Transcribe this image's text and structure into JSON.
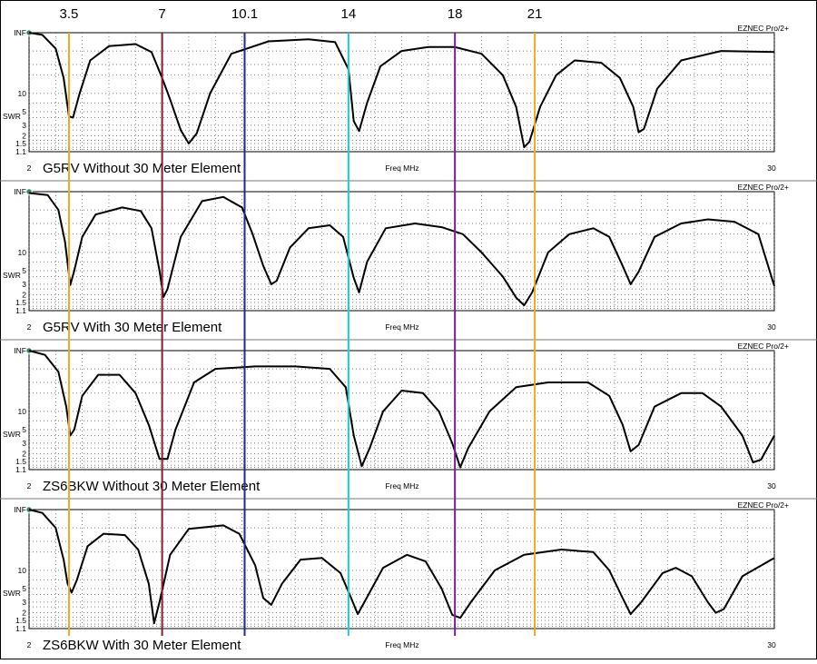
{
  "band_markers": [
    {
      "label": "3.5",
      "freq": 3.5,
      "color": "#f5a623"
    },
    {
      "label": "7",
      "freq": 7,
      "color": "#8b1a2e"
    },
    {
      "label": "10.1",
      "freq": 10.1,
      "color": "#1f2a8c"
    },
    {
      "label": "14",
      "freq": 14,
      "color": "#1ec8e6"
    },
    {
      "label": "18",
      "freq": 18,
      "color": "#7a1f9a"
    },
    {
      "label": "21",
      "freq": 21,
      "color": "#f5a623"
    }
  ],
  "common": {
    "brand": "EZNEC Pro/2+",
    "xlabel": "Freq MHz",
    "ylabel": "SWR",
    "x_min_label": "2",
    "x_max_label": "30",
    "y_tick_labels": [
      "INF",
      "10",
      "5",
      "3",
      "2",
      "1.5",
      "1.1"
    ],
    "y_tick_values": [
      100,
      10,
      5,
      3,
      2,
      1.5,
      1.1
    ],
    "xlim": [
      2,
      30
    ],
    "ylim": [
      1.1,
      100
    ],
    "yscale": "log",
    "grid": true
  },
  "chart_data": [
    {
      "type": "line",
      "title": "G5RV Without 30 Meter Element",
      "series": [
        {
          "values": [
            [
              2,
              100
            ],
            [
              2.5,
              92
            ],
            [
              3.0,
              55
            ],
            [
              3.3,
              18
            ],
            [
              3.5,
              4.2
            ],
            [
              3.65,
              4.0
            ],
            [
              3.9,
              10
            ],
            [
              4.3,
              35
            ],
            [
              5,
              60
            ],
            [
              6,
              65
            ],
            [
              6.6,
              48
            ],
            [
              7.0,
              18
            ],
            [
              7.3,
              8
            ],
            [
              7.7,
              2.5
            ],
            [
              8.0,
              1.5
            ],
            [
              8.3,
              2.2
            ],
            [
              8.8,
              10
            ],
            [
              9.6,
              45
            ],
            [
              11,
              72
            ],
            [
              12.5,
              78
            ],
            [
              13.5,
              70
            ],
            [
              14.0,
              25
            ],
            [
              14.2,
              3.5
            ],
            [
              14.4,
              2.4
            ],
            [
              14.7,
              7
            ],
            [
              15.2,
              28
            ],
            [
              16,
              50
            ],
            [
              17,
              58
            ],
            [
              18,
              58
            ],
            [
              19,
              45
            ],
            [
              19.8,
              20
            ],
            [
              20.3,
              6
            ],
            [
              20.6,
              1.3
            ],
            [
              20.8,
              1.6
            ],
            [
              21.2,
              6
            ],
            [
              21.8,
              20
            ],
            [
              22.5,
              35
            ],
            [
              23.5,
              32
            ],
            [
              24.2,
              18
            ],
            [
              24.7,
              6
            ],
            [
              24.9,
              2.3
            ],
            [
              25.1,
              2.6
            ],
            [
              25.6,
              12
            ],
            [
              26.5,
              35
            ],
            [
              28,
              50
            ],
            [
              30,
              48
            ]
          ]
        }
      ]
    },
    {
      "type": "line",
      "title": "G5RV With 30 Meter Element",
      "series": [
        {
          "values": [
            [
              2,
              95
            ],
            [
              2.7,
              88
            ],
            [
              3.1,
              50
            ],
            [
              3.35,
              15
            ],
            [
              3.55,
              2.9
            ],
            [
              3.7,
              5
            ],
            [
              4.0,
              18
            ],
            [
              4.5,
              42
            ],
            [
              5.5,
              55
            ],
            [
              6.2,
              48
            ],
            [
              6.6,
              25
            ],
            [
              6.9,
              5
            ],
            [
              7.05,
              1.85
            ],
            [
              7.2,
              2.5
            ],
            [
              7.7,
              18
            ],
            [
              8.5,
              70
            ],
            [
              9.3,
              82
            ],
            [
              10.0,
              55
            ],
            [
              10.4,
              20
            ],
            [
              10.8,
              6
            ],
            [
              11.1,
              3.0
            ],
            [
              11.3,
              3.4
            ],
            [
              11.8,
              12
            ],
            [
              12.5,
              25
            ],
            [
              13.3,
              28
            ],
            [
              13.8,
              18
            ],
            [
              14.2,
              3.8
            ],
            [
              14.4,
              2.2
            ],
            [
              14.7,
              7
            ],
            [
              15.4,
              25
            ],
            [
              16.5,
              30
            ],
            [
              17.5,
              26
            ],
            [
              18.3,
              20
            ],
            [
              19.0,
              10
            ],
            [
              19.8,
              4
            ],
            [
              20.3,
              1.8
            ],
            [
              20.6,
              1.35
            ],
            [
              20.9,
              2.2
            ],
            [
              21.5,
              10
            ],
            [
              22.3,
              20
            ],
            [
              23.2,
              25
            ],
            [
              23.8,
              18
            ],
            [
              24.3,
              6
            ],
            [
              24.6,
              3.0
            ],
            [
              24.9,
              4.8
            ],
            [
              25.5,
              18
            ],
            [
              26.5,
              30
            ],
            [
              27.5,
              35
            ],
            [
              28.5,
              32
            ],
            [
              29.4,
              20
            ],
            [
              30,
              2.8
            ]
          ]
        }
      ]
    },
    {
      "type": "line",
      "title": "ZS6BKW Without 30 Meter Element",
      "series": [
        {
          "values": [
            [
              2,
              100
            ],
            [
              2.6,
              85
            ],
            [
              3.1,
              45
            ],
            [
              3.4,
              12
            ],
            [
              3.55,
              4.0
            ],
            [
              3.7,
              5
            ],
            [
              4.0,
              18
            ],
            [
              4.6,
              40
            ],
            [
              5.4,
              40
            ],
            [
              6.0,
              20
            ],
            [
              6.5,
              6
            ],
            [
              6.9,
              1.65
            ],
            [
              7.2,
              1.65
            ],
            [
              7.5,
              5
            ],
            [
              8.2,
              30
            ],
            [
              9.0,
              50
            ],
            [
              10.5,
              55
            ],
            [
              12,
              55
            ],
            [
              13.3,
              50
            ],
            [
              13.9,
              25
            ],
            [
              14.2,
              4
            ],
            [
              14.5,
              1.25
            ],
            [
              14.8,
              2.5
            ],
            [
              15.3,
              10
            ],
            [
              16,
              22
            ],
            [
              16.8,
              20
            ],
            [
              17.4,
              10
            ],
            [
              17.9,
              3
            ],
            [
              18.2,
              1.2
            ],
            [
              18.5,
              2.5
            ],
            [
              19.3,
              10
            ],
            [
              20.3,
              25
            ],
            [
              21.5,
              30
            ],
            [
              23,
              30
            ],
            [
              23.8,
              18
            ],
            [
              24.3,
              6
            ],
            [
              24.6,
              2.2
            ],
            [
              24.9,
              2.8
            ],
            [
              25.5,
              12
            ],
            [
              26.5,
              20
            ],
            [
              27.3,
              20
            ],
            [
              28,
              12
            ],
            [
              28.8,
              4
            ],
            [
              29.2,
              1.45
            ],
            [
              29.5,
              1.6
            ],
            [
              30,
              4
            ]
          ]
        }
      ]
    },
    {
      "type": "line",
      "title": "ZS6BKW With 30 Meter Element",
      "series": [
        {
          "values": [
            [
              2,
              100
            ],
            [
              2.5,
              88
            ],
            [
              3.0,
              50
            ],
            [
              3.3,
              15
            ],
            [
              3.45,
              6
            ],
            [
              3.6,
              4.3
            ],
            [
              3.8,
              7
            ],
            [
              4.2,
              25
            ],
            [
              4.8,
              40
            ],
            [
              5.6,
              38
            ],
            [
              6.1,
              22
            ],
            [
              6.5,
              6
            ],
            [
              6.7,
              1.35
            ],
            [
              6.9,
              3
            ],
            [
              7.3,
              18
            ],
            [
              8.0,
              48
            ],
            [
              9.3,
              55
            ],
            [
              9.9,
              40
            ],
            [
              10.5,
              12
            ],
            [
              10.8,
              3.5
            ],
            [
              11.1,
              2.7
            ],
            [
              11.5,
              6
            ],
            [
              12.2,
              15
            ],
            [
              13.0,
              16
            ],
            [
              13.7,
              9
            ],
            [
              14.1,
              3.5
            ],
            [
              14.35,
              1.9
            ],
            [
              14.6,
              3
            ],
            [
              15.3,
              11
            ],
            [
              16.2,
              18
            ],
            [
              16.9,
              14
            ],
            [
              17.5,
              5
            ],
            [
              17.9,
              1.85
            ],
            [
              18.2,
              1.65
            ],
            [
              18.6,
              3
            ],
            [
              19.5,
              10
            ],
            [
              20.6,
              18
            ],
            [
              22,
              22
            ],
            [
              23.2,
              20
            ],
            [
              23.8,
              10
            ],
            [
              24.3,
              3.5
            ],
            [
              24.6,
              1.9
            ],
            [
              25.0,
              3
            ],
            [
              25.8,
              9
            ],
            [
              26.3,
              11
            ],
            [
              26.9,
              8
            ],
            [
              27.5,
              3
            ],
            [
              27.8,
              2.0
            ],
            [
              28.1,
              2.3
            ],
            [
              28.8,
              8
            ],
            [
              30,
              16
            ]
          ]
        }
      ]
    }
  ]
}
